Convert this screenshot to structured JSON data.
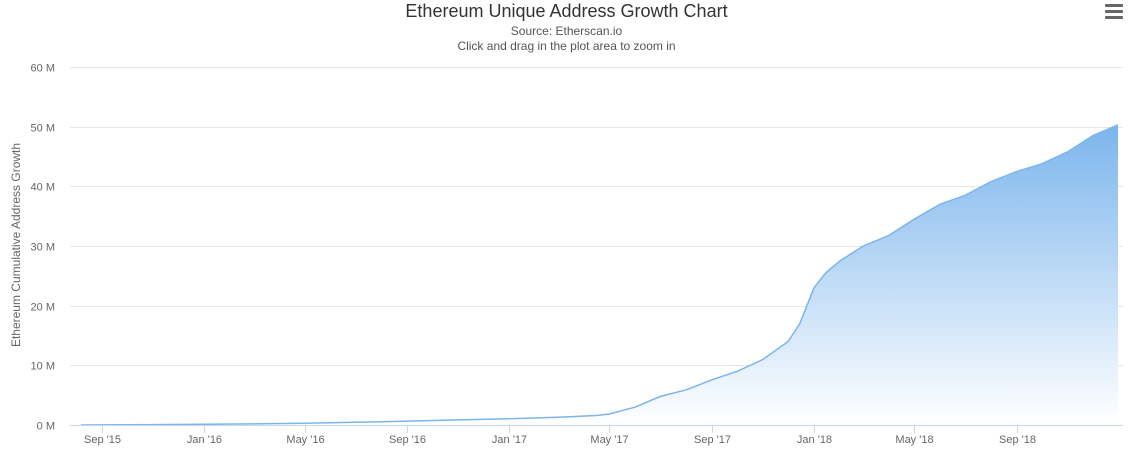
{
  "chart_data": {
    "type": "area",
    "title": "Ethereum Unique Address Growth Chart",
    "subtitle": "Source: Etherscan.io",
    "subtitle2": "Click and drag in the plot area to zoom in",
    "xlabel": "",
    "ylabel": "Ethereum Cumulative Address Growth",
    "ylim": [
      0,
      60000000
    ],
    "y_ticks": [
      "0 M",
      "10 M",
      "20 M",
      "30 M",
      "40 M",
      "50 M",
      "60 M"
    ],
    "x_ticks": [
      "Sep '15",
      "Jan '16",
      "May '16",
      "Sep '16",
      "Jan '17",
      "May '17",
      "Sep '17",
      "Jan '18",
      "May '18",
      "Sep '18"
    ],
    "grid": true,
    "colors": {
      "line": "#7cb5ec",
      "fill_top": "#7cb5ec",
      "fill_bottom": "#ffffff",
      "grid": "#e6e6e6",
      "axis": "#ccd6eb"
    },
    "series": [
      {
        "x": [
          "2015-08-07",
          "2015-09-01",
          "2015-11-01",
          "2016-01-01",
          "2016-03-01",
          "2016-05-01",
          "2016-07-01",
          "2016-09-01",
          "2016-11-01",
          "2017-01-01",
          "2017-03-01",
          "2017-04-15",
          "2017-05-01",
          "2017-06-01",
          "2017-07-01",
          "2017-08-01",
          "2017-09-01",
          "2017-10-01",
          "2017-11-01",
          "2017-12-01",
          "2017-12-15",
          "2018-01-01",
          "2018-01-15",
          "2018-02-01",
          "2018-03-01",
          "2018-04-01",
          "2018-05-01",
          "2018-06-01",
          "2018-07-01",
          "2018-08-01",
          "2018-09-01",
          "2018-10-01",
          "2018-11-01",
          "2018-12-01",
          "2018-12-31"
        ],
        "values": [
          0,
          20000,
          60000,
          120000,
          180000,
          300000,
          450000,
          650000,
          850000,
          1050000,
          1300000,
          1600000,
          1850000,
          3000000,
          4800000,
          5900000,
          7600000,
          9000000,
          11000000,
          14000000,
          17000000,
          23000000,
          25500000,
          27500000,
          30000000,
          31800000,
          34500000,
          37000000,
          38500000,
          40800000,
          42500000,
          43800000,
          45800000,
          48500000,
          50300000
        ]
      }
    ]
  }
}
